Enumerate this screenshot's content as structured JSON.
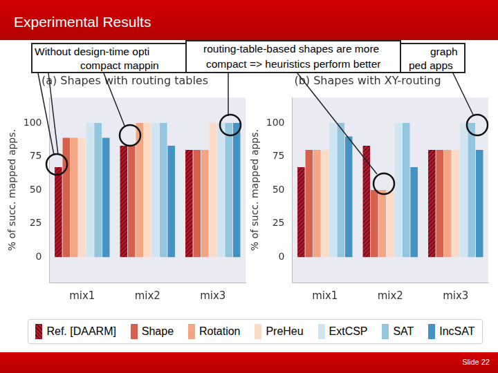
{
  "title": "Experimental Results",
  "footer": "Slide 22",
  "annotations": [
    {
      "lines": [
        "Without design-time opti",
        "compact mappin"
      ]
    },
    {
      "lines": [
        "routing-table-based shapes are more",
        "compact => heuristics perform better"
      ]
    },
    {
      "lines": [
        "graph",
        "ped apps"
      ]
    }
  ],
  "chart_data": [
    {
      "type": "bar",
      "title": "(a) Shapes with routing tables",
      "y_label": "% of succ. mapped apps.",
      "categories": [
        "mix1",
        "mix2",
        "mix3"
      ],
      "series": [
        {
          "name": "Ref. [DAARM]",
          "color": "#b2182b",
          "values": [
            67,
            83,
            80
          ]
        },
        {
          "name": "Shape",
          "color": "#d6604d",
          "values": [
            89,
            83,
            80
          ]
        },
        {
          "name": "Rotation",
          "color": "#f4a582",
          "values": [
            89,
            100,
            80
          ]
        },
        {
          "name": "PreHeu",
          "color": "#fddbc7",
          "values": [
            89,
            100,
            100
          ]
        },
        {
          "name": "ExtCSP",
          "color": "#d1e5f0",
          "values": [
            100,
            100,
            100
          ]
        },
        {
          "name": "SAT",
          "color": "#92c5de",
          "values": [
            100,
            100,
            100
          ]
        },
        {
          "name": "IncSAT",
          "color": "#4393c3",
          "values": [
            89,
            83,
            100
          ]
        }
      ],
      "ylim": [
        -19,
        119
      ],
      "yticks": [
        0,
        25,
        50,
        75,
        100
      ],
      "grid": false,
      "legend": "bottom"
    },
    {
      "type": "bar",
      "title": "(b) Shapes with XY-routing",
      "y_label": "% of succ. mapped apps.",
      "categories": [
        "mix1",
        "mix2",
        "mix3"
      ],
      "series": [
        {
          "name": "Ref. [DAARM]",
          "color": "#b2182b",
          "values": [
            67,
            83,
            80
          ]
        },
        {
          "name": "Shape",
          "color": "#d6604d",
          "values": [
            80,
            50,
            80
          ]
        },
        {
          "name": "Rotation",
          "color": "#f4a582",
          "values": [
            80,
            50,
            80
          ]
        },
        {
          "name": "PreHeu",
          "color": "#fddbc7",
          "values": [
            80,
            50,
            80
          ]
        },
        {
          "name": "ExtCSP",
          "color": "#d1e5f0",
          "values": [
            100,
            100,
            100
          ]
        },
        {
          "name": "SAT",
          "color": "#92c5de",
          "values": [
            100,
            100,
            100
          ]
        },
        {
          "name": "IncSAT",
          "color": "#4393c3",
          "values": [
            90,
            67,
            80
          ]
        }
      ],
      "ylim": [
        -19,
        119
      ],
      "yticks": [
        0,
        25,
        50,
        75,
        100
      ],
      "grid": false
    }
  ]
}
